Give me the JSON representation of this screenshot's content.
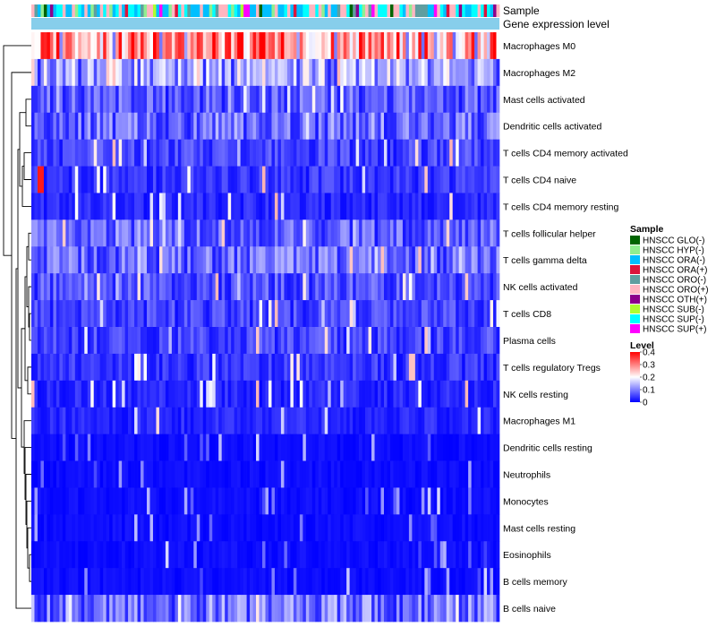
{
  "chart_data": {
    "type": "heatmap",
    "title": "",
    "annotation_rows": [
      "Sample",
      "Gene expression level"
    ],
    "rows": [
      "Macrophages M0",
      "Macrophages M2",
      "Mast cells activated",
      "Dendritic cells activated",
      "T cells CD4 memory activated",
      "T cells CD4 naive",
      "T cells CD4 memory resting",
      "T cells follicular helper",
      "T cells gamma delta",
      "NK cells activated",
      "T cells CD8",
      "Plasma cells",
      "T cells regulatory  Tregs",
      "NK cells resting",
      "Macrophages M1",
      "Dendritic cells resting",
      "Neutrophils",
      "Monocytes",
      "Mast cells resting",
      "Eosinophils",
      "B cells memory",
      "B cells naive"
    ],
    "n_samples": 150,
    "typical_level_by_row": [
      0.3,
      0.12,
      0.07,
      0.08,
      0.05,
      0.04,
      0.03,
      0.07,
      0.08,
      0.06,
      0.05,
      0.05,
      0.04,
      0.03,
      0.03,
      0.01,
      0.01,
      0.01,
      0.01,
      0.005,
      0.005,
      0.09
    ],
    "sample_legend": {
      "title": "Sample",
      "entries": [
        {
          "label": "HNSCC GLO(-)",
          "color": "#006400"
        },
        {
          "label": "HNSCC HYP(-)",
          "color": "#90EE90"
        },
        {
          "label": "HNSCC ORA(-)",
          "color": "#00BFFF"
        },
        {
          "label": "HNSCC ORA(+)",
          "color": "#DC143C"
        },
        {
          "label": "HNSCC ORO(-)",
          "color": "#5F9EA0"
        },
        {
          "label": "HNSCC ORO(+)",
          "color": "#FFB6C1"
        },
        {
          "label": "HNSCC OTH(+)",
          "color": "#8B008B"
        },
        {
          "label": "HNSCC SUB(-)",
          "color": "#ADFF2F"
        },
        {
          "label": "HNSCC SUP(-)",
          "color": "#00FFFF"
        },
        {
          "label": "HNSCC SUP(+)",
          "color": "#FF00FF"
        }
      ]
    },
    "level_legend": {
      "title": "Level",
      "ticks": [
        "0.4",
        "0.3",
        "0.2",
        "0.1",
        "0"
      ],
      "range": [
        0,
        0.4
      ],
      "low_color": "#0000FF",
      "mid_color": "#FFFFFF",
      "high_color": "#FF0000"
    },
    "gene_expression_bar_color": "#87CEEB"
  }
}
